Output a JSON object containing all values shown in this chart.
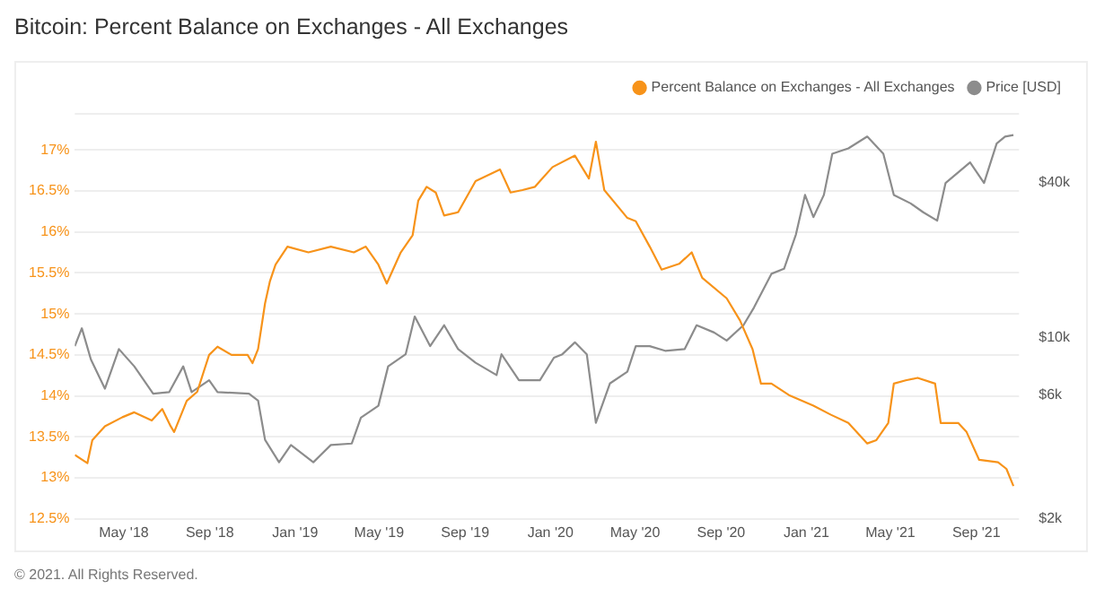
{
  "chart_data": {
    "type": "line",
    "title": "Bitcoin: Percent Balance on Exchanges - All Exchanges",
    "xlim": [
      "2018-02-20",
      "2021-11-01"
    ],
    "xticks": [
      {
        "value": "2018-05-01",
        "label": "May '18"
      },
      {
        "value": "2018-09-01",
        "label": "Sep '18"
      },
      {
        "value": "2019-01-01",
        "label": "Jan '19"
      },
      {
        "value": "2019-05-01",
        "label": "May '19"
      },
      {
        "value": "2019-09-01",
        "label": "Sep '19"
      },
      {
        "value": "2020-01-01",
        "label": "Jan '20"
      },
      {
        "value": "2020-05-01",
        "label": "May '20"
      },
      {
        "value": "2020-09-01",
        "label": "Sep '20"
      },
      {
        "value": "2021-01-01",
        "label": "Jan '21"
      },
      {
        "value": "2021-05-01",
        "label": "May '21"
      },
      {
        "value": "2021-09-01",
        "label": "Sep '21"
      }
    ],
    "ylim": [
      12.5,
      17.45
    ],
    "yticks": [
      {
        "value": 12.5,
        "label": "12.5%"
      },
      {
        "value": 13,
        "label": "13%"
      },
      {
        "value": 13.5,
        "label": "13.5%"
      },
      {
        "value": 14,
        "label": "14%"
      },
      {
        "value": 14.5,
        "label": "14.5%"
      },
      {
        "value": 15,
        "label": "15%"
      },
      {
        "value": 15.5,
        "label": "15.5%"
      },
      {
        "value": 16,
        "label": "16%"
      },
      {
        "value": 16.5,
        "label": "16.5%"
      },
      {
        "value": 17,
        "label": "17%"
      }
    ],
    "y2lim": [
      2000,
      74000
    ],
    "y2ticks": [
      {
        "value": 2000,
        "label": "$2k"
      },
      {
        "value": 6000,
        "label": "$6k"
      },
      {
        "value": 10000,
        "label": "$10k"
      },
      {
        "value": 40000,
        "label": "$40k"
      }
    ],
    "log": "y2",
    "grid": "y",
    "legend": "top right",
    "annotations": [
      "© 2021. All Rights Reserved."
    ],
    "series": [
      {
        "name": "Percent Balance on Exchanges - All Exchanges",
        "color": "#f7931a",
        "x": [
          "2018-02-20",
          "2018-03-10",
          "2018-03-17",
          "2018-04-04",
          "2018-04-29",
          "2018-05-16",
          "2018-06-10",
          "2018-06-25",
          "2018-07-07",
          "2018-07-12",
          "2018-07-30",
          "2018-08-14",
          "2018-08-31",
          "2018-09-12",
          "2018-10-02",
          "2018-10-25",
          "2018-11-01",
          "2018-11-09",
          "2018-11-19",
          "2018-11-26",
          "2018-12-04",
          "2018-12-21",
          "2019-01-20",
          "2019-02-21",
          "2019-03-26",
          "2019-04-12",
          "2019-04-30",
          "2019-05-12",
          "2019-06-01",
          "2019-06-18",
          "2019-06-26",
          "2019-07-08",
          "2019-07-21",
          "2019-08-02",
          "2019-08-22",
          "2019-09-16",
          "2019-10-21",
          "2019-11-05",
          "2019-11-22",
          "2019-12-10",
          "2019-12-17",
          "2020-01-04",
          "2020-02-05",
          "2020-02-25",
          "2020-03-06",
          "2020-03-18",
          "2020-04-20",
          "2020-05-02",
          "2020-05-22",
          "2020-06-08",
          "2020-07-03",
          "2020-07-21",
          "2020-08-05",
          "2020-09-09",
          "2020-09-28",
          "2020-10-16",
          "2020-10-28",
          "2020-11-12",
          "2020-12-07",
          "2021-01-11",
          "2021-02-05",
          "2021-03-02",
          "2021-03-29",
          "2021-04-11",
          "2021-04-28",
          "2021-05-06",
          "2021-05-23",
          "2021-06-09",
          "2021-07-04",
          "2021-07-12",
          "2021-08-06",
          "2021-08-18",
          "2021-09-05",
          "2021-10-02",
          "2021-10-14",
          "2021-10-24"
        ],
        "values": [
          13.28,
          13.18,
          13.46,
          13.63,
          13.74,
          13.8,
          13.7,
          13.84,
          13.63,
          13.56,
          13.94,
          14.05,
          14.5,
          14.6,
          14.5,
          14.5,
          14.4,
          14.57,
          15.13,
          15.4,
          15.6,
          15.82,
          15.75,
          15.82,
          15.75,
          15.82,
          15.6,
          15.37,
          15.75,
          15.96,
          16.38,
          16.55,
          16.48,
          16.2,
          16.24,
          16.62,
          16.76,
          16.48,
          16.51,
          16.55,
          16.62,
          16.79,
          16.93,
          16.65,
          17.1,
          16.51,
          16.17,
          16.13,
          15.82,
          15.54,
          15.61,
          15.75,
          15.44,
          15.19,
          14.92,
          14.57,
          14.15,
          14.15,
          14.01,
          13.88,
          13.77,
          13.67,
          13.42,
          13.46,
          13.67,
          14.15,
          14.19,
          14.22,
          14.15,
          13.67,
          13.67,
          13.56,
          13.22,
          13.19,
          13.11,
          12.9
        ]
      },
      {
        "name": "Price [USD]",
        "color": "#8c8c8c",
        "axis": "y2",
        "x": [
          "2018-02-20",
          "2018-03-02",
          "2018-03-15",
          "2018-04-04",
          "2018-04-24",
          "2018-05-16",
          "2018-06-12",
          "2018-07-05",
          "2018-07-25",
          "2018-08-06",
          "2018-08-31",
          "2018-09-12",
          "2018-10-27",
          "2018-11-09",
          "2018-11-19",
          "2018-12-09",
          "2018-12-26",
          "2019-01-27",
          "2019-02-21",
          "2019-03-23",
          "2019-04-05",
          "2019-04-30",
          "2019-05-14",
          "2019-06-08",
          "2019-06-21",
          "2019-07-13",
          "2019-08-02",
          "2019-08-22",
          "2019-09-16",
          "2019-10-16",
          "2019-10-23",
          "2019-11-17",
          "2019-12-17",
          "2020-01-06",
          "2020-01-18",
          "2020-02-05",
          "2020-02-22",
          "2020-03-06",
          "2020-03-26",
          "2020-04-20",
          "2020-05-02",
          "2020-05-22",
          "2020-06-13",
          "2020-07-11",
          "2020-07-28",
          "2020-08-22",
          "2020-09-09",
          "2020-10-03",
          "2020-10-18",
          "2020-11-12",
          "2020-11-30",
          "2020-12-17",
          "2020-12-30",
          "2021-01-11",
          "2021-01-26",
          "2021-02-07",
          "2021-03-02",
          "2021-03-29",
          "2021-04-21",
          "2021-05-06",
          "2021-05-30",
          "2021-06-17",
          "2021-07-07",
          "2021-07-19",
          "2021-08-23",
          "2021-09-12",
          "2021-09-30",
          "2021-10-12",
          "2021-10-24"
        ],
        "values": [
          9300,
          10900,
          8260,
          6370,
          9060,
          7770,
          6090,
          6180,
          7770,
          6180,
          6870,
          6180,
          6090,
          5730,
          4040,
          3310,
          3860,
          3310,
          3860,
          3910,
          4920,
          5470,
          7770,
          8650,
          12100,
          9300,
          11200,
          9060,
          8020,
          7190,
          8650,
          6870,
          6870,
          8390,
          8650,
          9620,
          8650,
          4700,
          6670,
          7410,
          9300,
          9300,
          8920,
          9060,
          11200,
          10500,
          9770,
          11200,
          13100,
          17700,
          18500,
          25100,
          35700,
          29300,
          35700,
          51500,
          54000,
          60000,
          51500,
          35700,
          33100,
          30600,
          28400,
          39700,
          47700,
          39700,
          56400,
          60000,
          60800
        ]
      }
    ]
  }
}
